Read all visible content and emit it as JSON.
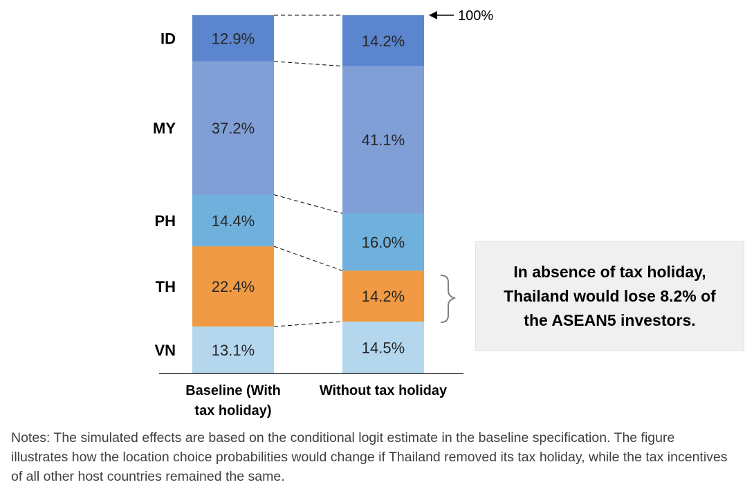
{
  "chart_data": {
    "type": "bar",
    "stacked": true,
    "categories": [
      "Baseline (With tax holiday)",
      "Without tax holiday"
    ],
    "category_lines": [
      [
        "Baseline (With",
        "tax holiday)"
      ],
      [
        "Without tax holiday"
      ]
    ],
    "series": [
      {
        "name": "VN",
        "values": [
          13.1,
          14.5
        ],
        "color": "#b4d7ee",
        "labels": [
          "13.1%",
          "14.5%"
        ]
      },
      {
        "name": "TH",
        "values": [
          22.4,
          14.2
        ],
        "color": "#f09a43",
        "labels": [
          "22.4%",
          "14.2%"
        ]
      },
      {
        "name": "PH",
        "values": [
          14.4,
          16.0
        ],
        "color": "#6fb1dc",
        "labels": [
          "14.4%",
          "16.0%"
        ]
      },
      {
        "name": "MY",
        "values": [
          37.2,
          41.1
        ],
        "color": "#7f9fd6",
        "labels": [
          "37.2%",
          "41.1%"
        ]
      },
      {
        "name": "ID",
        "values": [
          12.9,
          14.2
        ],
        "color": "#5b86ce",
        "labels": [
          "12.9%",
          "14.2%"
        ]
      }
    ],
    "ylim": [
      0,
      100
    ],
    "total_marker": "100%",
    "legend": "row labels at left of first bar"
  },
  "callout": {
    "lines": [
      "In absence of tax holiday,",
      "Thailand would lose 8.2% of",
      "the ASEAN5 investors."
    ]
  },
  "notes": "Notes: The simulated effects are based on the conditional logit estimate in the baseline specification. The figure illustrates how the location choice probabilities would change if Thailand removed its tax holiday, while the tax incentives of all other host countries remained the same."
}
